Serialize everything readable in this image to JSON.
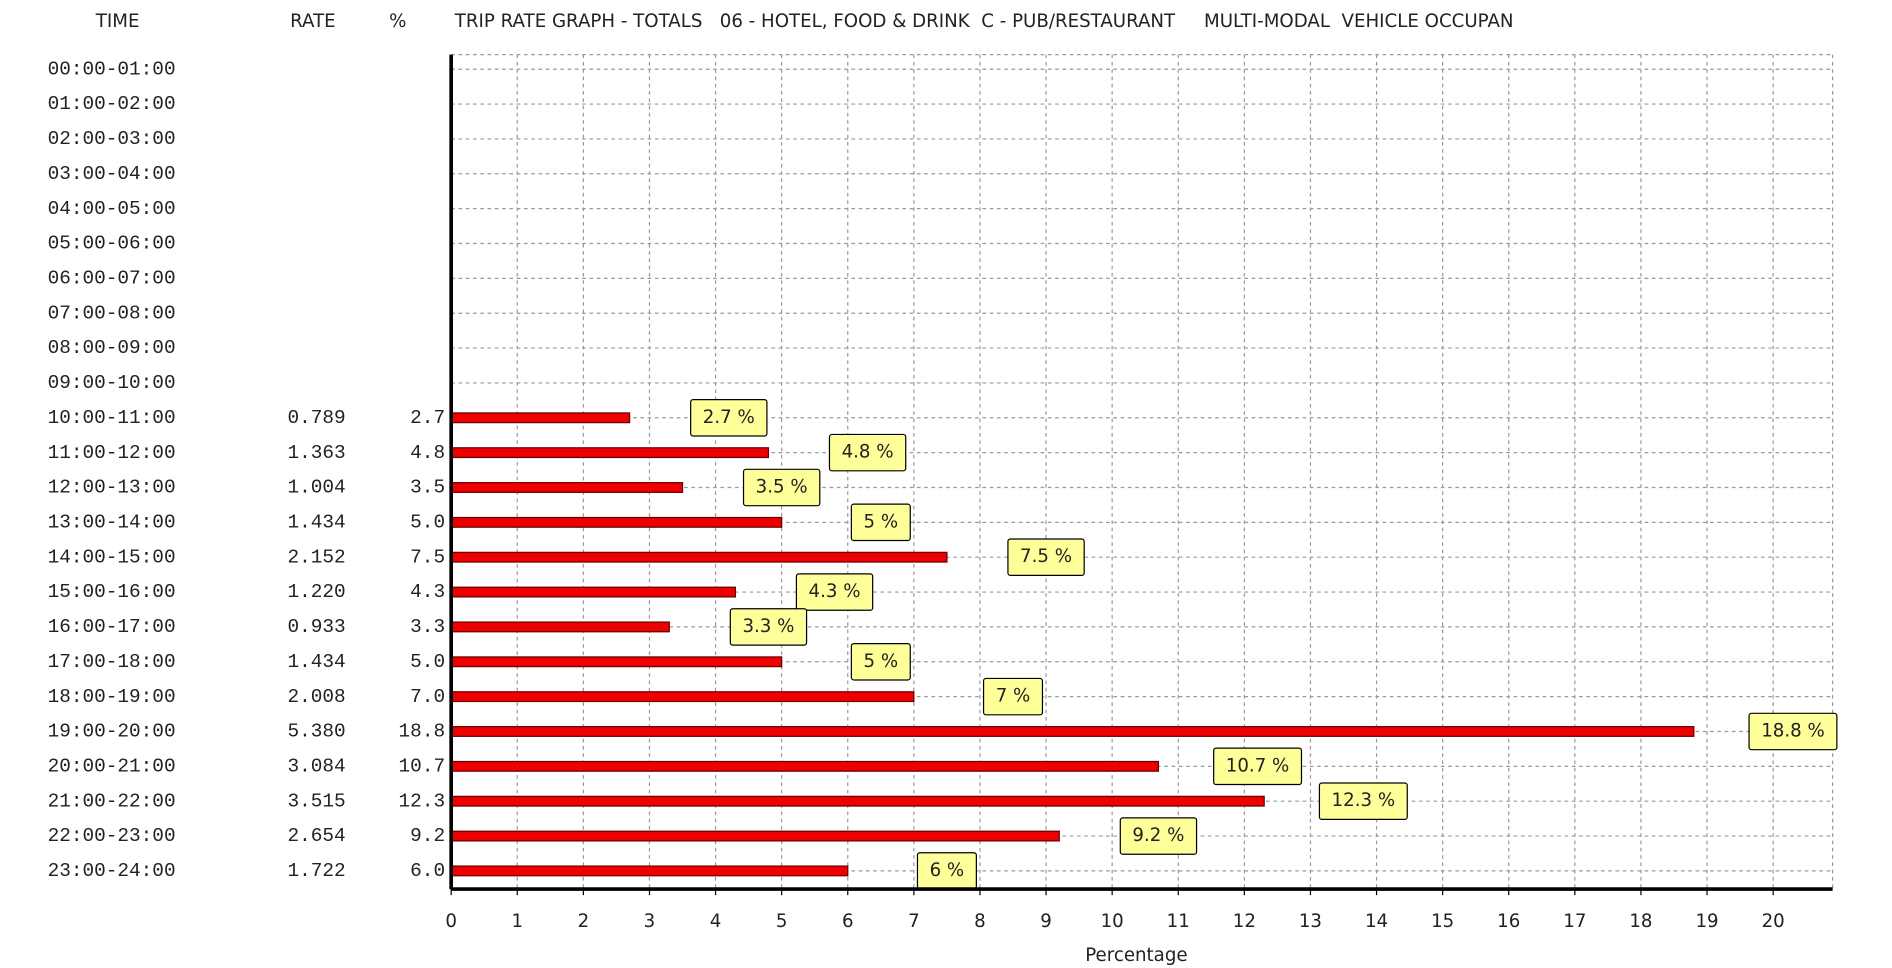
{
  "chart_data": {
    "type": "bar",
    "title": "TRIP RATE GRAPH - TOTALS   06 - HOTEL, FOOD & DRINK  C - PUB/RESTAURANT     MULTI-MODAL  VEHICLE OCCUPAN",
    "column_headers": [
      "TIME",
      "RATE",
      "%"
    ],
    "categories": [
      "00:00-01:00",
      "01:00-02:00",
      "02:00-03:00",
      "03:00-04:00",
      "04:00-05:00",
      "05:00-06:00",
      "06:00-07:00",
      "07:00-08:00",
      "08:00-09:00",
      "09:00-10:00",
      "10:00-11:00",
      "11:00-12:00",
      "12:00-13:00",
      "13:00-14:00",
      "14:00-15:00",
      "15:00-16:00",
      "16:00-17:00",
      "17:00-18:00",
      "18:00-19:00",
      "19:00-20:00",
      "20:00-21:00",
      "21:00-22:00",
      "22:00-23:00",
      "23:00-24:00"
    ],
    "rate_labels": [
      null,
      null,
      null,
      null,
      null,
      null,
      null,
      null,
      null,
      null,
      "0.789",
      "1.363",
      "1.004",
      "1.434",
      "2.152",
      "1.220",
      "0.933",
      "1.434",
      "2.008",
      "5.380",
      "3.084",
      "3.515",
      "2.654",
      "1.722"
    ],
    "percent_labels": [
      null,
      null,
      null,
      null,
      null,
      null,
      null,
      null,
      null,
      null,
      "2.7",
      "4.8",
      "3.5",
      "5.0",
      "7.5",
      "4.3",
      "3.3",
      "5.0",
      "7.0",
      "18.8",
      "10.7",
      "12.3",
      "9.2",
      "6.0"
    ],
    "values": [
      null,
      null,
      null,
      null,
      null,
      null,
      null,
      null,
      null,
      null,
      2.7,
      4.8,
      3.5,
      5,
      7.5,
      4.3,
      3.3,
      5,
      7,
      18.8,
      10.7,
      12.3,
      9.2,
      6
    ],
    "value_labels": [
      null,
      null,
      null,
      null,
      null,
      null,
      null,
      null,
      null,
      null,
      "2.7 %",
      "4.8 %",
      "3.5 %",
      "5 %",
      "7.5 %",
      "4.3 %",
      "3.3 %",
      "5 %",
      "7 %",
      "18.8 %",
      "10.7 %",
      "12.3 %",
      "9.2 %",
      "6 %"
    ],
    "color": "#ee0000",
    "label_color": "#ffff99",
    "xlabel": "Percentage",
    "xlim": [
      0,
      20.9
    ],
    "xticks": [
      0,
      1,
      2,
      3,
      4,
      5,
      6,
      7,
      8,
      9,
      10,
      11,
      12,
      13,
      14,
      15,
      16,
      17,
      18,
      19,
      20
    ],
    "grid": true
  }
}
